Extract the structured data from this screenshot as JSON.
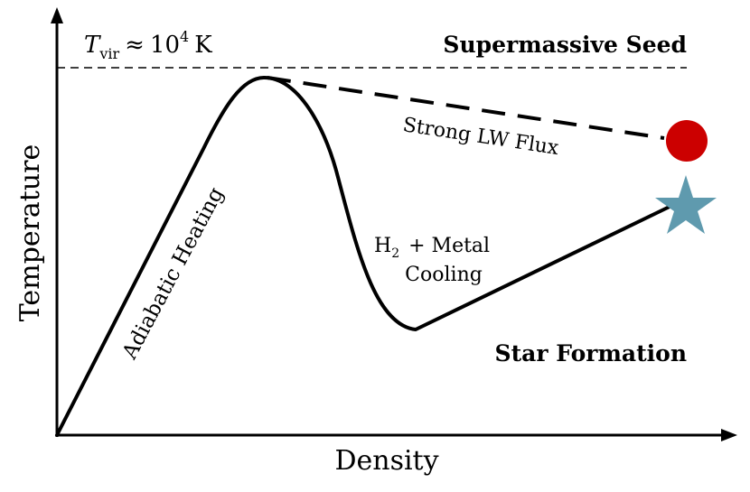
{
  "axes": {
    "xlabel": "Density",
    "ylabel": "Temperature"
  },
  "threshold": {
    "symbol": "T",
    "subscript": "vir",
    "relation": "≈",
    "base": "10",
    "exponent": "4",
    "unit": "K"
  },
  "labels": {
    "seed": "Supermassive Seed",
    "star": "Star Formation",
    "adiabatic": "Adiabatic Heating",
    "lw_flux": "Strong LW Flux",
    "h2_prefix": "H",
    "h2_sub": "2",
    "h2_rest": "+ Metal",
    "cooling": "Cooling"
  },
  "markers": {
    "seed_color": "#cc0000",
    "star_color": "#5f9aae",
    "seed_icon": "red-circle",
    "star_icon": "star"
  }
}
